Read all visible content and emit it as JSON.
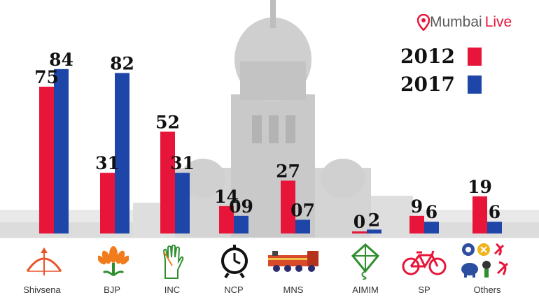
{
  "brand": {
    "part1": "Mumbai",
    "part2": "Live"
  },
  "colors": {
    "y2012": "#e8153a",
    "y2017": "#1e46a8",
    "brand_red": "#e8153a"
  },
  "chart_data": {
    "type": "bar",
    "title": "",
    "xlabel": "",
    "ylabel": "",
    "ylim": [
      0,
      90
    ],
    "categories": [
      "Shivsena",
      "BJP",
      "INC",
      "NCP",
      "MNS",
      "AIMIM",
      "SP",
      "Others"
    ],
    "series": [
      {
        "name": "2012",
        "values": [
          75,
          31,
          52,
          14,
          27,
          0,
          9,
          19
        ],
        "labels": [
          "75",
          "31",
          "52",
          "14",
          "27",
          "0",
          "9",
          "19"
        ]
      },
      {
        "name": "2017",
        "values": [
          84,
          82,
          31,
          9,
          7,
          2,
          6,
          6
        ],
        "labels": [
          "84",
          "82",
          "31",
          "09",
          "07",
          "2",
          "6",
          "6"
        ]
      }
    ],
    "legend": "top-right",
    "grid": false
  },
  "party_icons": [
    "bow-and-arrow-icon",
    "lotus-icon",
    "hand-icon",
    "clock-icon",
    "railway-engine-icon",
    "kite-icon",
    "bicycle-icon",
    "others-symbols-icon"
  ]
}
